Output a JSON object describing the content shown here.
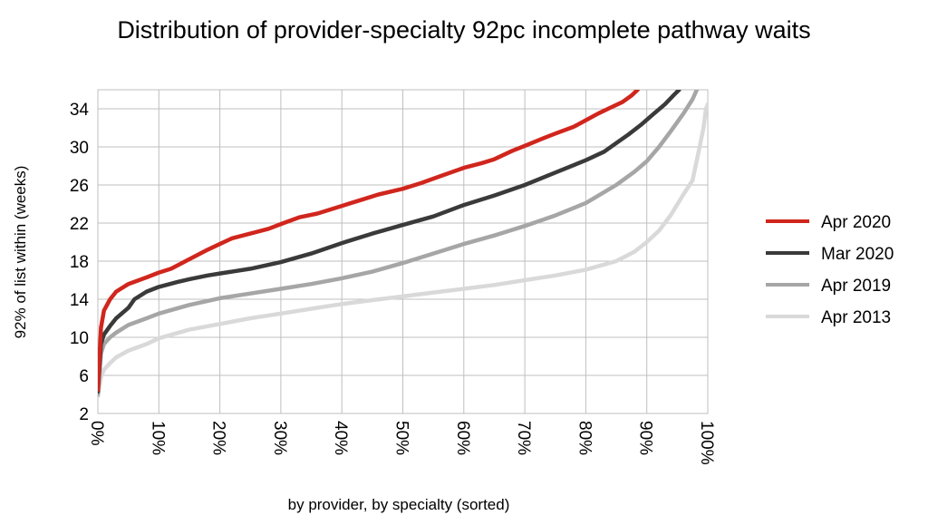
{
  "chart_data": {
    "type": "line",
    "title": "Distribution of provider-specialty 92pc incomplete pathway waits",
    "xlabel": "by provider, by specialty (sorted)",
    "ylabel": "92% of list within (weeks)",
    "xlim": [
      0,
      100
    ],
    "ylim": [
      2,
      36
    ],
    "x_ticks": [
      "0%",
      "10%",
      "20%",
      "30%",
      "40%",
      "50%",
      "60%",
      "70%",
      "80%",
      "90%",
      "100%"
    ],
    "y_ticks": [
      2,
      6,
      10,
      14,
      18,
      22,
      26,
      30,
      34
    ],
    "grid": true,
    "legend_position": "right",
    "series": [
      {
        "name": "Apr 2020",
        "color": "#d0261d",
        "points": [
          [
            0,
            4.5
          ],
          [
            0.5,
            11
          ],
          [
            1,
            12.8
          ],
          [
            2,
            14
          ],
          [
            3,
            14.8
          ],
          [
            5,
            15.6
          ],
          [
            8,
            16.3
          ],
          [
            10,
            16.8
          ],
          [
            12,
            17.2
          ],
          [
            15,
            18.2
          ],
          [
            18,
            19.2
          ],
          [
            20,
            19.8
          ],
          [
            22,
            20.4
          ],
          [
            25,
            20.9
          ],
          [
            28,
            21.4
          ],
          [
            30,
            21.9
          ],
          [
            33,
            22.6
          ],
          [
            36,
            23.0
          ],
          [
            40,
            23.8
          ],
          [
            43,
            24.4
          ],
          [
            46,
            25.0
          ],
          [
            50,
            25.6
          ],
          [
            53,
            26.2
          ],
          [
            56,
            26.9
          ],
          [
            60,
            27.8
          ],
          [
            63,
            28.3
          ],
          [
            65,
            28.7
          ],
          [
            68,
            29.6
          ],
          [
            70,
            30.1
          ],
          [
            73,
            30.9
          ],
          [
            75,
            31.4
          ],
          [
            78,
            32.1
          ],
          [
            80,
            32.8
          ],
          [
            82,
            33.5
          ],
          [
            84,
            34.1
          ],
          [
            86,
            34.7
          ],
          [
            87.5,
            35.4
          ],
          [
            88.5,
            36
          ]
        ]
      },
      {
        "name": "Mar 2020",
        "color": "#3a3a3a",
        "points": [
          [
            0,
            4.3
          ],
          [
            0.5,
            9.3
          ],
          [
            1,
            10.3
          ],
          [
            2,
            11.2
          ],
          [
            3,
            12
          ],
          [
            5,
            13.1
          ],
          [
            6,
            14
          ],
          [
            8,
            14.8
          ],
          [
            10,
            15.3
          ],
          [
            13,
            15.8
          ],
          [
            15,
            16.1
          ],
          [
            18,
            16.5
          ],
          [
            20,
            16.7
          ],
          [
            25,
            17.2
          ],
          [
            30,
            17.9
          ],
          [
            35,
            18.8
          ],
          [
            40,
            19.9
          ],
          [
            45,
            20.9
          ],
          [
            50,
            21.8
          ],
          [
            55,
            22.7
          ],
          [
            60,
            23.9
          ],
          [
            65,
            24.9
          ],
          [
            70,
            26.0
          ],
          [
            75,
            27.3
          ],
          [
            80,
            28.6
          ],
          [
            83,
            29.5
          ],
          [
            85,
            30.4
          ],
          [
            87,
            31.3
          ],
          [
            89,
            32.3
          ],
          [
            91,
            33.4
          ],
          [
            93,
            34.5
          ],
          [
            94.5,
            35.5
          ],
          [
            95.3,
            36
          ]
        ]
      },
      {
        "name": "Apr 2019",
        "color": "#a6a6a6",
        "points": [
          [
            0,
            4.0
          ],
          [
            0.5,
            8.3
          ],
          [
            1,
            9.3
          ],
          [
            2,
            10.0
          ],
          [
            3,
            10.5
          ],
          [
            5,
            11.3
          ],
          [
            8,
            12.0
          ],
          [
            10,
            12.5
          ],
          [
            15,
            13.4
          ],
          [
            20,
            14.1
          ],
          [
            25,
            14.6
          ],
          [
            30,
            15.1
          ],
          [
            35,
            15.6
          ],
          [
            40,
            16.2
          ],
          [
            45,
            16.9
          ],
          [
            50,
            17.8
          ],
          [
            55,
            18.8
          ],
          [
            60,
            19.8
          ],
          [
            65,
            20.7
          ],
          [
            70,
            21.7
          ],
          [
            75,
            22.8
          ],
          [
            80,
            24.1
          ],
          [
            85,
            26.0
          ],
          [
            88,
            27.4
          ],
          [
            90,
            28.5
          ],
          [
            92,
            30.0
          ],
          [
            94,
            31.7
          ],
          [
            96,
            33.5
          ],
          [
            97.5,
            35
          ],
          [
            98.2,
            36
          ]
        ]
      },
      {
        "name": "Apr 2013",
        "color": "#d9d9d9",
        "points": [
          [
            0,
            3.8
          ],
          [
            0.5,
            5.8
          ],
          [
            1,
            6.6
          ],
          [
            2,
            7.3
          ],
          [
            3,
            7.9
          ],
          [
            5,
            8.6
          ],
          [
            8,
            9.3
          ],
          [
            10,
            9.9
          ],
          [
            15,
            10.8
          ],
          [
            20,
            11.4
          ],
          [
            25,
            12.0
          ],
          [
            30,
            12.5
          ],
          [
            35,
            13.0
          ],
          [
            40,
            13.5
          ],
          [
            45,
            13.9
          ],
          [
            50,
            14.3
          ],
          [
            55,
            14.7
          ],
          [
            60,
            15.1
          ],
          [
            65,
            15.5
          ],
          [
            70,
            16.0
          ],
          [
            75,
            16.5
          ],
          [
            80,
            17.1
          ],
          [
            85,
            18.0
          ],
          [
            88,
            19.0
          ],
          [
            90,
            20.0
          ],
          [
            92,
            21.2
          ],
          [
            94,
            22.9
          ],
          [
            96,
            25.0
          ],
          [
            97.5,
            26.5
          ],
          [
            98.5,
            29.5
          ],
          [
            99.3,
            32
          ],
          [
            99.7,
            34
          ],
          [
            100,
            34.5
          ]
        ]
      }
    ]
  }
}
